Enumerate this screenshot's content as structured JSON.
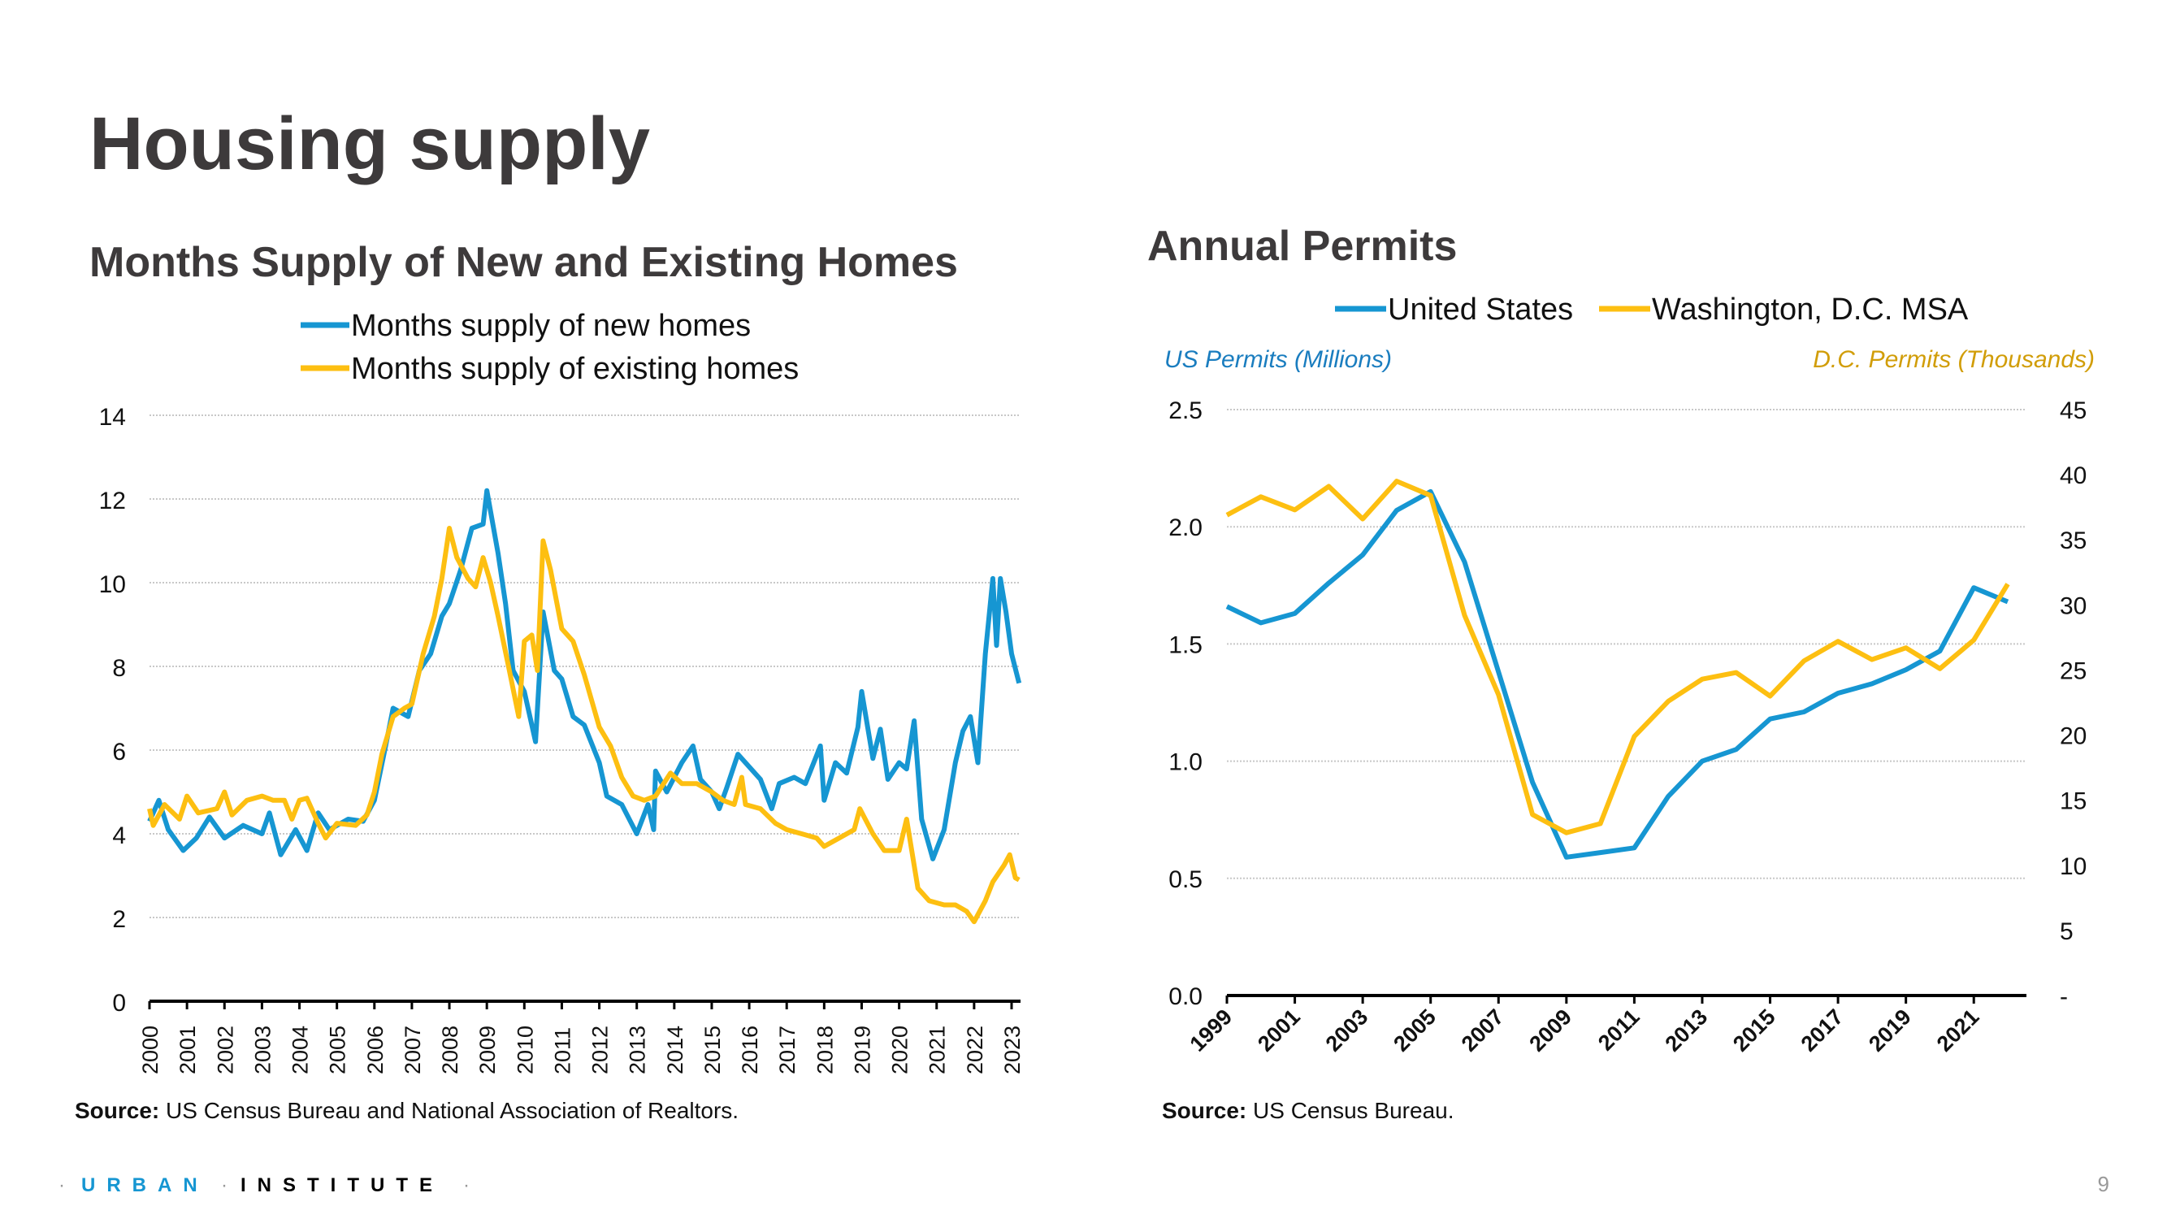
{
  "slide": {
    "title": "Housing supply",
    "page_number": "9",
    "logo": {
      "part1": "URBAN",
      "part2": "INSTITUTE"
    }
  },
  "colors": {
    "blue": "#1696d2",
    "yellow": "#fdbf11",
    "title": "#3d3a3b",
    "us_axis_label": "#1a7dbf",
    "dc_axis_label": "#d19d08"
  },
  "chart_data": [
    {
      "type": "line",
      "title": "Months Supply of New and Existing Homes",
      "xlabel": "",
      "ylabel": "",
      "ylim": [
        0,
        14
      ],
      "yticks": [
        "0",
        "2",
        "4",
        "6",
        "8",
        "10",
        "12",
        "14"
      ],
      "xticks": [
        "2000",
        "2001",
        "2002",
        "2003",
        "2004",
        "2005",
        "2006",
        "2007",
        "2008",
        "2009",
        "2010",
        "2011",
        "2012",
        "2013",
        "2014",
        "2015",
        "2016",
        "2017",
        "2018",
        "2019",
        "2020",
        "2021",
        "2022",
        "2023"
      ],
      "grid": true,
      "legend_position": "top",
      "source_label": "Source:",
      "source": " US Census Bureau and National Association of Realtors.",
      "series": [
        {
          "name": "Months supply of new homes",
          "color": "#1696d2",
          "x": [
            2000.0,
            2000.25,
            2000.5,
            2000.9,
            2001.25,
            2001.6,
            2002.0,
            2002.5,
            2003.0,
            2003.2,
            2003.5,
            2003.9,
            2004.2,
            2004.5,
            2004.8,
            2005.3,
            2005.7,
            2006.0,
            2006.3,
            2006.5,
            2006.9,
            2007.2,
            2007.5,
            2007.8,
            2008.0,
            2008.3,
            2008.6,
            2008.9,
            2009.0,
            2009.3,
            2009.5,
            2009.7,
            2010.0,
            2010.3,
            2010.5,
            2010.8,
            2011.0,
            2011.3,
            2011.6,
            2012.0,
            2012.2,
            2012.6,
            2013.0,
            2013.3,
            2013.45,
            2013.5,
            2013.8,
            2014.2,
            2014.5,
            2014.7,
            2015.0,
            2015.2,
            2015.4,
            2015.7,
            2016.0,
            2016.3,
            2016.6,
            2016.8,
            2017.2,
            2017.5,
            2017.9,
            2018.0,
            2018.3,
            2018.6,
            2018.9,
            2019.0,
            2019.3,
            2019.5,
            2019.7,
            2020.0,
            2020.2,
            2020.4,
            2020.6,
            2020.9,
            2021.2,
            2021.5,
            2021.7,
            2021.9,
            2022.1,
            2022.3,
            2022.5,
            2022.6,
            2022.7,
            2022.85,
            2023.0,
            2023.2
          ],
          "y": [
            4.3,
            4.8,
            4.1,
            3.6,
            3.9,
            4.4,
            3.9,
            4.2,
            4.0,
            4.5,
            3.5,
            4.1,
            3.6,
            4.5,
            4.1,
            4.35,
            4.3,
            4.8,
            6.1,
            7.0,
            6.8,
            7.9,
            8.3,
            9.2,
            9.5,
            10.3,
            11.3,
            11.4,
            12.2,
            10.7,
            9.5,
            7.9,
            7.4,
            6.2,
            9.3,
            7.9,
            7.7,
            6.8,
            6.6,
            5.7,
            4.9,
            4.7,
            4.0,
            4.7,
            4.1,
            5.5,
            5.0,
            5.7,
            6.1,
            5.3,
            5.0,
            4.6,
            5.1,
            5.9,
            5.6,
            5.3,
            4.6,
            5.2,
            5.35,
            5.2,
            6.1,
            4.8,
            5.7,
            5.45,
            6.55,
            7.4,
            5.8,
            6.5,
            5.3,
            5.7,
            5.55,
            6.7,
            4.35,
            3.4,
            4.1,
            5.7,
            6.45,
            6.8,
            5.7,
            8.3,
            10.1,
            8.5,
            10.1,
            9.3,
            8.3,
            7.6
          ]
        },
        {
          "name": "Months supply of existing homes",
          "color": "#fdbf11",
          "x": [
            2000.0,
            2000.1,
            2000.4,
            2000.8,
            2001.0,
            2001.3,
            2001.8,
            2002.0,
            2002.2,
            2002.6,
            2003.0,
            2003.3,
            2003.6,
            2003.8,
            2004.0,
            2004.2,
            2004.5,
            2004.7,
            2005.0,
            2005.5,
            2005.8,
            2006.0,
            2006.2,
            2006.5,
            2006.8,
            2007.0,
            2007.3,
            2007.6,
            2007.8,
            2008.0,
            2008.2,
            2008.5,
            2008.7,
            2008.9,
            2009.1,
            2009.3,
            2009.6,
            2009.85,
            2010.0,
            2010.2,
            2010.35,
            2010.5,
            2010.7,
            2011.0,
            2011.3,
            2011.6,
            2012.0,
            2012.3,
            2012.6,
            2012.9,
            2013.2,
            2013.5,
            2013.9,
            2014.2,
            2014.6,
            2015.0,
            2015.3,
            2015.6,
            2015.8,
            2015.9,
            2016.3,
            2016.7,
            2017.0,
            2017.4,
            2017.8,
            2018.0,
            2018.4,
            2018.8,
            2018.95,
            2019.3,
            2019.6,
            2020.0,
            2020.2,
            2020.5,
            2020.8,
            2021.2,
            2021.5,
            2021.8,
            2022.0,
            2022.3,
            2022.5,
            2022.8,
            2022.95,
            2023.1,
            2023.2
          ],
          "y": [
            4.6,
            4.2,
            4.7,
            4.35,
            4.9,
            4.5,
            4.6,
            5.0,
            4.45,
            4.8,
            4.9,
            4.8,
            4.8,
            4.35,
            4.8,
            4.85,
            4.25,
            3.9,
            4.25,
            4.2,
            4.45,
            5.0,
            5.9,
            6.8,
            7.0,
            7.1,
            8.3,
            9.2,
            10.1,
            11.3,
            10.6,
            10.1,
            9.9,
            10.6,
            10.0,
            9.2,
            7.9,
            6.8,
            8.6,
            8.75,
            7.9,
            11.0,
            10.3,
            8.9,
            8.6,
            7.8,
            6.55,
            6.1,
            5.35,
            4.9,
            4.8,
            4.9,
            5.45,
            5.2,
            5.2,
            5.0,
            4.8,
            4.7,
            5.35,
            4.7,
            4.6,
            4.25,
            4.1,
            4.0,
            3.9,
            3.7,
            3.9,
            4.1,
            4.6,
            4.0,
            3.6,
            3.6,
            4.35,
            2.7,
            2.4,
            2.3,
            2.3,
            2.15,
            1.9,
            2.4,
            2.85,
            3.25,
            3.5,
            2.95,
            2.9
          ]
        }
      ]
    },
    {
      "type": "line",
      "title": "Annual Permits",
      "y_left_label": "US Permits (Millions)",
      "y_right_label": "D.C. Permits (Thousands)",
      "ylim_left": [
        0,
        2.5
      ],
      "ylim_right": [
        0,
        45
      ],
      "yticks_left": [
        "0.0",
        "0.5",
        "1.0",
        "1.5",
        "2.0",
        "2.5"
      ],
      "yticks_right": [
        "-",
        "5",
        "10",
        "15",
        "20",
        "25",
        "30",
        "35",
        "40",
        "45"
      ],
      "xticks": [
        "1999",
        "2001",
        "2003",
        "2005",
        "2007",
        "2009",
        "2011",
        "2013",
        "2015",
        "2017",
        "2019",
        "2021"
      ],
      "grid": true,
      "legend_position": "top",
      "source_label": "Source:",
      "source": " US Census Bureau.",
      "x": [
        1999,
        2000,
        2001,
        2002,
        2003,
        2004,
        2005,
        2006,
        2007,
        2008,
        2009,
        2010,
        2011,
        2012,
        2013,
        2014,
        2015,
        2016,
        2017,
        2018,
        2019,
        2020,
        2021,
        2022
      ],
      "series": [
        {
          "name": "United States",
          "axis": "left",
          "color": "#1696d2",
          "values": [
            1.66,
            1.59,
            1.63,
            1.76,
            1.88,
            2.07,
            2.15,
            1.85,
            1.38,
            0.91,
            0.59,
            0.61,
            0.63,
            0.85,
            1.0,
            1.05,
            1.18,
            1.21,
            1.29,
            1.33,
            1.39,
            1.47,
            1.74,
            1.68
          ]
        },
        {
          "name": "Washington, D.C. MSA",
          "axis": "right",
          "color": "#fdbf11",
          "values": [
            36.9,
            38.3,
            37.3,
            39.1,
            36.6,
            39.5,
            38.4,
            29.2,
            23.1,
            13.9,
            12.5,
            13.2,
            19.9,
            22.6,
            24.3,
            24.8,
            23.0,
            25.7,
            27.2,
            25.8,
            26.7,
            25.1,
            27.3,
            31.6
          ]
        }
      ]
    }
  ]
}
